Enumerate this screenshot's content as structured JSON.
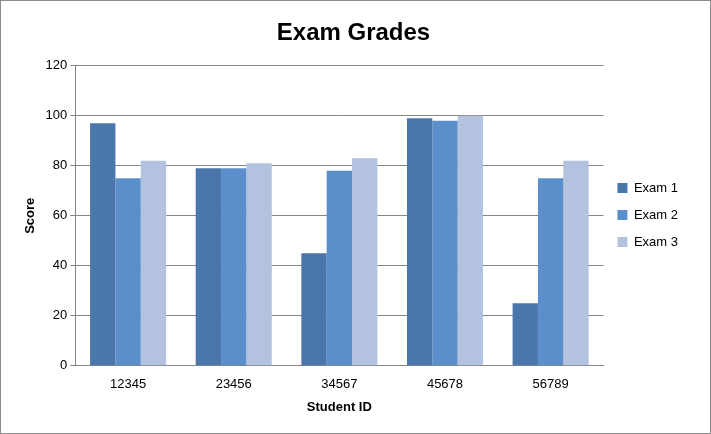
{
  "chart_data": {
    "type": "bar",
    "title": "Exam Grades",
    "x_label": "Student ID",
    "y_label": "Score",
    "categories": [
      "12345",
      "23456",
      "34567",
      "45678",
      "56789"
    ],
    "series": [
      {
        "name": "Exam 1",
        "color": "#4a76ab",
        "values": [
          97,
          79,
          45,
          99,
          25
        ]
      },
      {
        "name": "Exam 2",
        "color": "#5b8fcb",
        "values": [
          75,
          79,
          78,
          98,
          75
        ]
      },
      {
        "name": "Exam 3",
        "color": "#b3c2df",
        "values": [
          82,
          81,
          83,
          100,
          82
        ]
      }
    ],
    "ylim": [
      0,
      120
    ],
    "yticks": [
      0,
      20,
      40,
      60,
      80,
      100,
      120
    ],
    "grid": true,
    "legend": "right"
  }
}
